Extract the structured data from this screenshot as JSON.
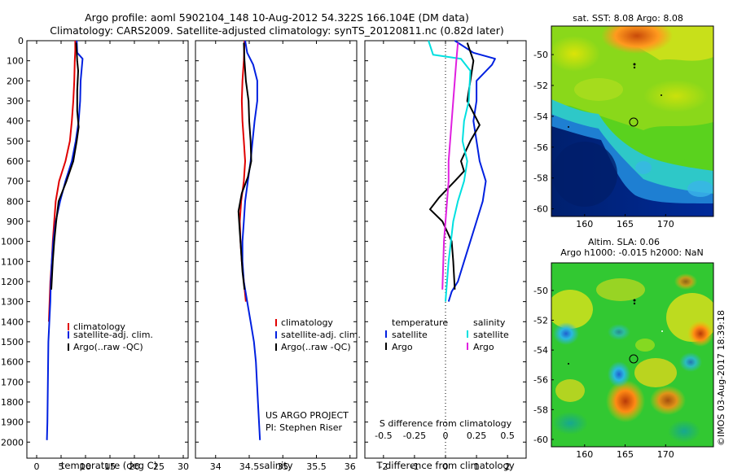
{
  "header": {
    "line1": "Argo profile: aoml 5902104_148 10-Aug-2012 54.322S 166.104E (DM data)",
    "line2": "Climatology: CARS2009. Satellite-adjusted climatology: synTS_20120811.nc (0.82d later)"
  },
  "colors": {
    "climatology": "#e00000",
    "satellite": "#0020e0",
    "argo": "#000000",
    "salinity_sat": "#00e0e0",
    "salinity_argo": "#e020e0"
  },
  "chart_data": [
    {
      "type": "line",
      "id": "temperature",
      "xlabel": "temperature (deg C)",
      "ylabel": "",
      "xlim": [
        -2,
        31
      ],
      "ylim": [
        0,
        2080
      ],
      "y_reversed": true,
      "xticks": [
        0,
        5,
        10,
        15,
        20,
        25,
        30
      ],
      "yticks": [
        0,
        100,
        200,
        300,
        400,
        500,
        600,
        700,
        800,
        900,
        1000,
        1100,
        1200,
        1300,
        1400,
        1500,
        1600,
        1700,
        1800,
        1900,
        2000
      ],
      "legend": [
        "climatology",
        "satellite-adj. clim.",
        "Argo(..raw -QC)"
      ],
      "series": [
        {
          "name": "climatology",
          "color_key": "climatology",
          "x": [
            7.9,
            7.9,
            7.8,
            7.7,
            7.5,
            7.2,
            6.8,
            5.9,
            4.6,
            3.9,
            3.6,
            3.3,
            3.1,
            2.8,
            2.5
          ],
          "y": [
            0,
            50,
            100,
            200,
            300,
            400,
            500,
            600,
            700,
            800,
            900,
            1000,
            1100,
            1200,
            1400
          ]
        },
        {
          "name": "satellite-adj. clim.",
          "color_key": "satellite",
          "x": [
            8.2,
            8.3,
            9.4,
            9.0,
            8.9,
            8.6,
            8.0,
            7.2,
            5.9,
            4.8,
            3.9,
            3.4,
            3.1,
            2.9,
            2.8,
            2.6,
            2.4,
            2.3,
            2.2,
            2.1
          ],
          "y": [
            0,
            60,
            90,
            200,
            300,
            400,
            500,
            600,
            700,
            800,
            900,
            1000,
            1100,
            1200,
            1300,
            1400,
            1500,
            1700,
            1900,
            1990
          ]
        },
        {
          "name": "Argo(..raw -QC)",
          "color_key": "argo",
          "x": [
            8.1,
            8.3,
            8.5,
            8.3,
            8.3,
            8.6,
            8.2,
            7.5,
            6.1,
            4.5,
            4.0,
            3.6,
            3.3,
            3.0
          ],
          "y": [
            10,
            100,
            150,
            250,
            350,
            430,
            500,
            600,
            700,
            800,
            900,
            1000,
            1100,
            1240
          ]
        }
      ],
      "annotations": []
    },
    {
      "type": "line",
      "id": "salinity",
      "xlabel": "salinity",
      "ylabel": "",
      "xlim": [
        33.7,
        36.1
      ],
      "ylim": [
        0,
        2080
      ],
      "y_reversed": true,
      "xticks": [
        34,
        34.5,
        35,
        35.5,
        36
      ],
      "legend": [
        "climatology",
        "satellite-adj. clim.",
        "Argo(..raw -QC)"
      ],
      "series": [
        {
          "name": "climatology",
          "color_key": "climatology",
          "x": [
            34.43,
            34.42,
            34.4,
            34.39,
            34.4,
            34.42,
            34.44,
            34.42,
            34.38,
            34.36,
            34.37,
            34.39,
            34.42,
            34.45
          ],
          "y": [
            0,
            100,
            200,
            300,
            400,
            500,
            600,
            700,
            800,
            900,
            1000,
            1100,
            1200,
            1300
          ]
        },
        {
          "name": "satellite-adj. clim.",
          "color_key": "satellite",
          "x": [
            34.44,
            34.47,
            34.56,
            34.62,
            34.62,
            34.58,
            34.55,
            34.52,
            34.48,
            34.44,
            34.42,
            34.4,
            34.4,
            34.42,
            34.47,
            34.52,
            34.57,
            34.6,
            34.63,
            34.66
          ],
          "y": [
            0,
            60,
            120,
            200,
            300,
            400,
            500,
            600,
            700,
            800,
            900,
            1000,
            1100,
            1200,
            1300,
            1400,
            1500,
            1600,
            1800,
            1990
          ]
        },
        {
          "name": "Argo(..raw -QC)",
          "color_key": "argo",
          "x": [
            34.42,
            34.43,
            34.45,
            34.49,
            34.5,
            34.52,
            34.53,
            34.48,
            34.39,
            34.34,
            34.36,
            34.38,
            34.4,
            34.43
          ],
          "y": [
            10,
            100,
            200,
            300,
            400,
            500,
            600,
            680,
            760,
            850,
            950,
            1050,
            1150,
            1240
          ]
        }
      ],
      "annotations": [
        "US ARGO PROJECT",
        "PI: Stephen Riser"
      ]
    },
    {
      "type": "line",
      "id": "differences",
      "xlabel": "T difference from climatology",
      "xlabel_top": "S difference from climatology",
      "xlim": [
        -2.6,
        2.6
      ],
      "ylim": [
        0,
        2080
      ],
      "y_reversed": true,
      "xticks": [
        -2,
        -1,
        0,
        1,
        2
      ],
      "xticks_s": [
        "-0.5",
        "-0.25",
        "0",
        "0.25",
        "0.5"
      ],
      "legend_temperature": [
        "temperature",
        "satellite",
        "Argo"
      ],
      "legend_salinity": [
        "salinity",
        "satellite",
        "salinity_argo"
      ],
      "series": [
        {
          "name": "temperature satellite",
          "color_key": "satellite",
          "x": [
            0.3,
            0.9,
            1.6,
            1.5,
            1.0,
            1.0,
            0.9,
            1.0,
            1.1,
            1.3,
            1.2,
            1.0,
            0.8,
            0.6,
            0.4,
            0.2,
            0.1
          ],
          "y": [
            0,
            60,
            90,
            120,
            200,
            300,
            400,
            500,
            600,
            700,
            800,
            900,
            1000,
            1100,
            1200,
            1250,
            1300
          ]
        },
        {
          "name": "temperature Argo",
          "color_key": "argo",
          "x": [
            0.7,
            0.9,
            0.8,
            0.7,
            1.1,
            0.8,
            0.5,
            0.6,
            0.3,
            -0.2,
            -0.5,
            -0.1,
            0.2,
            0.25,
            0.3
          ],
          "y": [
            10,
            100,
            200,
            300,
            420,
            500,
            600,
            650,
            700,
            780,
            840,
            900,
            1000,
            1100,
            1240
          ]
        },
        {
          "name": "salinity satellite",
          "color_key": "salinity_sat",
          "x": [
            -0.55,
            -0.4,
            0.5,
            0.8,
            0.75,
            0.6,
            0.55,
            0.7,
            0.6,
            0.4,
            0.25,
            0.1,
            0.0
          ],
          "y": [
            0,
            70,
            90,
            150,
            300,
            400,
            500,
            600,
            700,
            800,
            900,
            1100,
            1300
          ]
        },
        {
          "name": "salinity Argo",
          "color_key": "salinity_argo",
          "x": [
            0.4,
            0.35,
            0.3,
            0.25,
            0.2,
            0.15,
            0.1,
            0.1,
            0.05,
            0.0,
            -0.05,
            -0.1
          ],
          "y": [
            10,
            100,
            200,
            300,
            400,
            500,
            600,
            700,
            800,
            900,
            1000,
            1240
          ]
        }
      ],
      "annotations": []
    }
  ],
  "maps": [
    {
      "id": "sst-map",
      "title": "sat. SST: 8.08 Argo: 8.08",
      "xticks": [
        "160",
        "165",
        "170"
      ],
      "yticks": [
        "-50",
        "-52",
        "-54",
        "-56",
        "-58",
        "-60"
      ]
    },
    {
      "id": "sla-map",
      "title_line1": "Altim. SLA: 0.06",
      "title_line2": "Argo h1000: -0.015 h2000: NaN",
      "xticks": [
        "160",
        "165",
        "170"
      ],
      "yticks": [
        "-50",
        "-52",
        "-54",
        "-56",
        "-58",
        "-60"
      ]
    }
  ],
  "footer": {
    "credit": "©IMOS 03-Aug-2017 18:39:18"
  }
}
